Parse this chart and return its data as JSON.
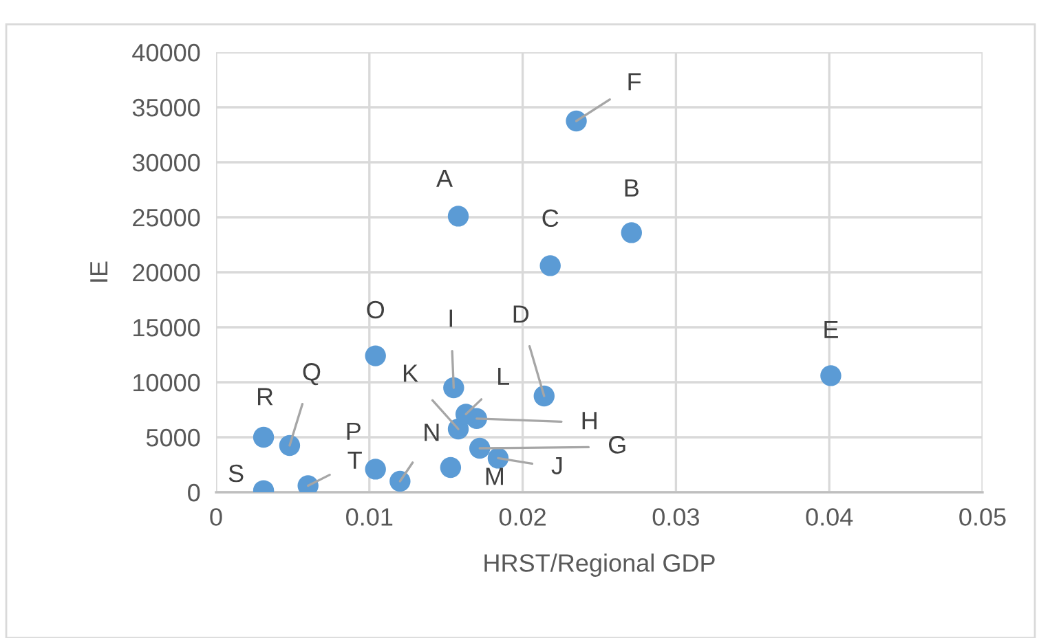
{
  "chart_data": {
    "type": "scatter",
    "xlabel": "HRST/Regional GDP",
    "ylabel": "IE",
    "x": [
      0.0158,
      0.0271,
      0.0218,
      0.0214,
      0.0401,
      0.0235,
      0.0172,
      0.017,
      0.0155,
      0.0184,
      0.0158,
      0.0163,
      0.0153,
      0.012,
      0.0104,
      0.0104,
      0.0048,
      0.0031,
      0.0031,
      0.006
    ],
    "series": [
      {
        "color": "#5b9bd5",
        "values": [
          25100,
          23600,
          20600,
          8750,
          10600,
          33750,
          4000,
          6700,
          9500,
          3100,
          5750,
          7100,
          2250,
          1000,
          12400,
          2100,
          4250,
          5000,
          150,
          600
        ]
      }
    ],
    "annotations": [
      {
        "text": "A",
        "x": 0.0158,
        "y": 25100
      },
      {
        "text": "B",
        "x": 0.0271,
        "y": 23600
      },
      {
        "text": "C",
        "x": 0.0218,
        "y": 20600
      },
      {
        "text": "D",
        "x": 0.0214,
        "y": 8750
      },
      {
        "text": "E",
        "x": 0.0401,
        "y": 10600
      },
      {
        "text": "F",
        "x": 0.0235,
        "y": 33750
      },
      {
        "text": "G",
        "x": 0.0172,
        "y": 4000
      },
      {
        "text": "H",
        "x": 0.017,
        "y": 6700
      },
      {
        "text": "I",
        "x": 0.0155,
        "y": 9500
      },
      {
        "text": "J",
        "x": 0.0184,
        "y": 3100
      },
      {
        "text": "K",
        "x": 0.0158,
        "y": 5750
      },
      {
        "text": "L",
        "x": 0.0163,
        "y": 7100
      },
      {
        "text": "M",
        "x": 0.0153,
        "y": 2250
      },
      {
        "text": "N",
        "x": 0.012,
        "y": 1000
      },
      {
        "text": "O",
        "x": 0.0104,
        "y": 12400
      },
      {
        "text": "P",
        "x": 0.0104,
        "y": 2100
      },
      {
        "text": "Q",
        "x": 0.0048,
        "y": 4250
      },
      {
        "text": "R",
        "x": 0.0031,
        "y": 5000
      },
      {
        "text": "S",
        "x": 0.0031,
        "y": 150
      },
      {
        "text": "T",
        "x": 0.006,
        "y": 600
      }
    ],
    "xlim": [
      0,
      0.05
    ],
    "xticks": [
      {
        "value": 0,
        "label": "0"
      },
      0.01,
      0.02,
      0.03,
      0.04,
      0.05
    ],
    "ylim": [
      0,
      40000
    ],
    "yticks": [
      0,
      5000,
      10000,
      15000,
      20000,
      25000,
      30000,
      35000,
      40000
    ],
    "grid": true,
    "marker": "circle"
  }
}
